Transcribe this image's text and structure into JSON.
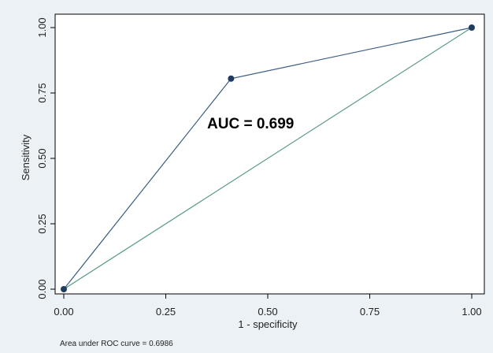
{
  "chart_data": {
    "type": "line",
    "title": "",
    "xlabel": "1 - specificity",
    "ylabel": "Sensitivity",
    "xlim": [
      0,
      1
    ],
    "ylim": [
      0,
      1
    ],
    "xticks": [
      "0.00",
      "0.25",
      "0.50",
      "0.75",
      "1.00"
    ],
    "yticks": [
      "0.00",
      "0.25",
      "0.50",
      "0.75",
      "1.00"
    ],
    "grid": false,
    "series": [
      {
        "name": "",
        "x": [
          0,
          0.41,
          1
        ],
        "y": [
          0,
          0.805,
          1
        ],
        "color": "#3b5b82",
        "markers": true
      },
      {
        "name": "",
        "x": [
          0,
          1
        ],
        "y": [
          0,
          1
        ],
        "color": "#5b9a8a",
        "markers": false
      }
    ],
    "annotation": "AUC = 0.699",
    "footnote": "Area under ROC curve = 0.6986"
  }
}
